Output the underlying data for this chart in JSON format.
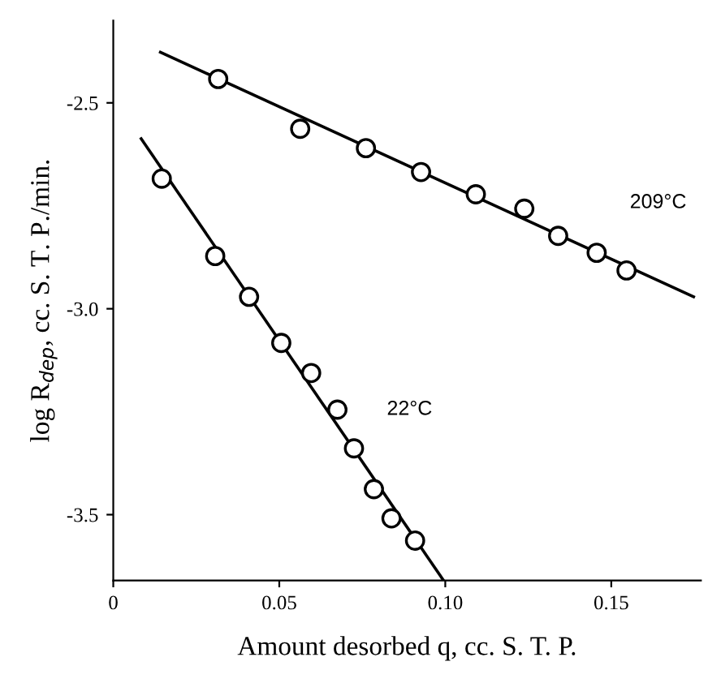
{
  "chart_data": {
    "type": "scatter",
    "xlabel": "Amount desorbed q, cc. S. T. P.",
    "ylabel": "log R$_{dep}$, cc. S. T. P./min.",
    "xlim": [
      0,
      0.177
    ],
    "ylim": [
      -3.66,
      -2.3
    ],
    "xticks": [
      0,
      0.05,
      {
        "value": 0.1,
        "label": "0.10"
      },
      0.15
    ],
    "yticks": [
      {
        "value": -2.5,
        "label": "-2.5"
      },
      {
        "value": -3.0,
        "label": "-3.0"
      },
      {
        "value": -3.5,
        "label": "-3.5"
      }
    ],
    "grid": false,
    "legend": false,
    "marker": "circle",
    "series": [
      {
        "name": "209°C",
        "color": "#000000",
        "x": [
          0.0316,
          0.0563,
          0.0761,
          0.0927,
          0.1092,
          0.1238,
          0.134,
          0.1456,
          0.1546
        ],
        "values": [
          -2.442,
          -2.563,
          -2.61,
          -2.668,
          -2.722,
          -2.757,
          -2.823,
          -2.864,
          -2.907
        ]
      },
      {
        "type": "line",
        "marker": "none",
        "color": "#000000",
        "x": [
          0.0142,
          0.1748
        ],
        "values": [
          -2.377,
          -2.971
        ]
      },
      {
        "name": "22°C",
        "color": "#000000",
        "x": [
          0.0146,
          0.0307,
          0.0409,
          0.0506,
          0.0596,
          0.0675,
          0.0725,
          0.0785,
          0.0838,
          0.0909
        ],
        "values": [
          -2.684,
          -2.872,
          -2.971,
          -3.083,
          -3.156,
          -3.245,
          -3.339,
          -3.438,
          -3.509,
          -3.563
        ]
      },
      {
        "type": "line",
        "marker": "none",
        "color": "#000000",
        "x": [
          0.0084,
          0.0995
        ],
        "values": [
          -2.587,
          -3.66
        ]
      }
    ]
  }
}
